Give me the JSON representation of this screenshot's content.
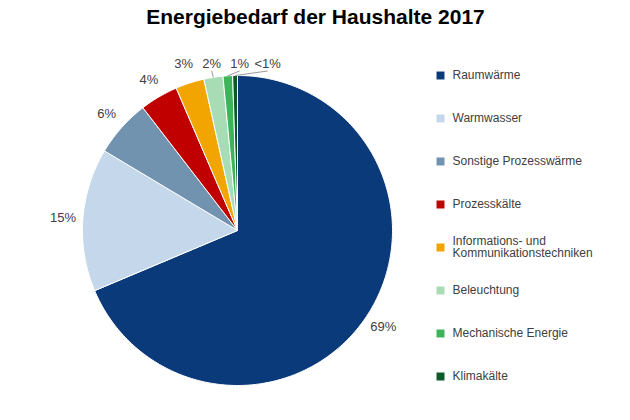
{
  "chart_data": {
    "type": "pie",
    "title": "Energiebedarf der Haushalte 2017",
    "categories": [
      "Raumwärme",
      "Warmwasser",
      "Sonstige Prozesswärme",
      "Prozesskälte",
      "Informations- und Kommunikationstechniken",
      "Beleuchtung",
      "Mechanische Energie",
      "Klimakälte"
    ],
    "values": [
      69,
      15,
      6,
      4,
      3,
      2,
      1,
      0.5
    ],
    "value_labels": [
      "69%",
      "15%",
      "6%",
      "4%",
      "3%",
      "2%",
      "1%",
      "<1%"
    ],
    "colors": [
      "#0b3a7a",
      "#c5d7ea",
      "#7193b0",
      "#c00000",
      "#f2a500",
      "#a8dcb4",
      "#3cb45a",
      "#0b5a2a"
    ],
    "data_labels": true,
    "legend": "right"
  }
}
